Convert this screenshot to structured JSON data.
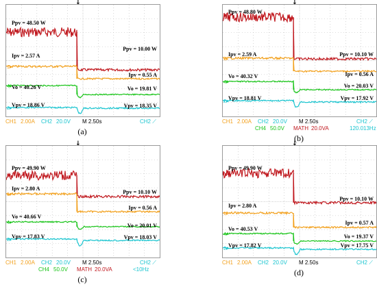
{
  "colors": {
    "ch1": "#f2a01c",
    "ch2": "#19c4cf",
    "ch4": "#19c419",
    "math": "#c0181e",
    "grid": "#b9b9b9",
    "text": "#000000"
  },
  "trigger_icon": "down-arrow-icon",
  "chart_data": [
    {
      "type": "line",
      "caption": "(a)",
      "time_unit": "s",
      "x_range": [
        -12.5,
        12.5
      ],
      "step_time": 0,
      "series": [
        {
          "channel": "MATH",
          "before": 48.5,
          "after": 10.0,
          "annotation_before": "Ppv = 48.50 W",
          "annotation_after": "Ppv = 10.00 W"
        },
        {
          "channel": "CH1",
          "before": 2.57,
          "after": 0.55,
          "annotation_before": "Ipv = 2.57 A",
          "annotation_after": "Ipv = 0.55 A"
        },
        {
          "channel": "CH4",
          "before": 40.26,
          "after": 19.81,
          "annotation_before": "Vo = 40.26 V",
          "annotation_after": "Vo = 19.81 V"
        },
        {
          "channel": "CH2",
          "before": 18.86,
          "after": 18.35,
          "annotation_before": "Vpv = 18.86 V",
          "annotation_after": "Vpv = 18.35 V"
        }
      ],
      "footer_lines": [
        [
          {
            "text": "CH1",
            "color": "ch1"
          },
          {
            "text": "2.00A",
            "color": "ch1"
          },
          {
            "text": "CH2",
            "color": "ch2"
          },
          {
            "text": "20.0V",
            "color": "ch2"
          },
          {
            "text": "M 2.50s",
            "color": "text"
          },
          {
            "text": "CH2 ⟋",
            "color": "ch2"
          }
        ]
      ]
    },
    {
      "type": "line",
      "caption": "(b)",
      "time_unit": "s",
      "x_range": [
        -12.5,
        12.5
      ],
      "step_time": 0,
      "series": [
        {
          "channel": "MATH",
          "before": 48.8,
          "after": 10.1,
          "annotation_before": "Ppv = 48.80 W",
          "annotation_after": "Ppv = 10.10 W"
        },
        {
          "channel": "CH1",
          "before": 2.59,
          "after": 0.56,
          "annotation_before": "Ipv = 2.59 A",
          "annotation_after": "Ipv = 0.56 A"
        },
        {
          "channel": "CH4",
          "before": 40.32,
          "after": 20.03,
          "annotation_before": "Vo = 40.32 V",
          "annotation_after": "Vo = 20.03 V"
        },
        {
          "channel": "CH2",
          "before": 18.81,
          "after": 17.92,
          "annotation_before": "Vpv = 18.81 V",
          "annotation_after": "Vpv = 17.92 V"
        }
      ],
      "footer_lines": [
        [
          {
            "text": "CH1",
            "color": "ch1"
          },
          {
            "text": "2.00A",
            "color": "ch1"
          },
          {
            "text": "CH2",
            "color": "ch2"
          },
          {
            "text": "20.0V",
            "color": "ch2"
          },
          {
            "text": "M 2.50s",
            "color": "text"
          },
          {
            "text": "CH2 ⟋",
            "color": "ch2"
          }
        ],
        [
          {
            "text": "CH4",
            "color": "ch4"
          },
          {
            "text": "50.0V",
            "color": "ch4"
          },
          {
            "text": "MATH",
            "color": "math"
          },
          {
            "text": "20.0VA",
            "color": "math"
          },
          {
            "text": "120.013Hz",
            "color": "ch2"
          }
        ]
      ]
    },
    {
      "type": "line",
      "caption": "(c)",
      "time_unit": "s",
      "x_range": [
        -12.5,
        12.5
      ],
      "step_time": 0,
      "series": [
        {
          "channel": "MATH",
          "before": 49.9,
          "after": 10.1,
          "annotation_before": "Ppv = 49.90 W",
          "annotation_after": "Ppv = 10.10 W"
        },
        {
          "channel": "CH1",
          "before": 2.8,
          "after": 0.56,
          "annotation_before": "Ipv = 2.80 A",
          "annotation_after": "Ipv = 0.56 A"
        },
        {
          "channel": "CH4",
          "before": 40.66,
          "after": 20.01,
          "annotation_before": "Vo = 40.66 V",
          "annotation_after": "Vo = 20.01 V"
        },
        {
          "channel": "CH2",
          "before": 17.83,
          "after": 18.03,
          "annotation_before": "Vpv = 17.83 V",
          "annotation_after": "Vpv = 18.03 V"
        }
      ],
      "footer_lines": [
        [
          {
            "text": "CH1",
            "color": "ch1"
          },
          {
            "text": "2.00A",
            "color": "ch1"
          },
          {
            "text": "CH2",
            "color": "ch2"
          },
          {
            "text": "20.0V",
            "color": "ch2"
          },
          {
            "text": "M 2.50s",
            "color": "text"
          },
          {
            "text": "CH2 ⟋",
            "color": "ch2"
          }
        ],
        [
          {
            "text": "CH4",
            "color": "ch4"
          },
          {
            "text": "50.0V",
            "color": "ch4"
          },
          {
            "text": "MATH",
            "color": "math"
          },
          {
            "text": "20.0VA",
            "color": "math"
          },
          {
            "text": "<10Hz",
            "color": "ch2"
          }
        ]
      ]
    },
    {
      "type": "line",
      "caption": "(d)",
      "time_unit": "s",
      "x_range": [
        -12.5,
        12.5
      ],
      "step_time": 0,
      "series": [
        {
          "channel": "MATH",
          "before": 49.9,
          "after": 10.1,
          "annotation_before": "Ppv = 49.90 W",
          "annotation_after": "Ppv = 10.10 W"
        },
        {
          "channel": "CH1",
          "before": 2.8,
          "after": 0.57,
          "annotation_before": "Ipv = 2.80 A",
          "annotation_after": "Ipv = 0.57 A"
        },
        {
          "channel": "CH4",
          "before": 40.53,
          "after": 19.37,
          "annotation_before": "Vo = 40.53 V",
          "annotation_after": "Vo = 19.37 V"
        },
        {
          "channel": "CH2",
          "before": 17.82,
          "after": 17.75,
          "annotation_before": "Vpv = 17.82 V",
          "annotation_after": "Vpv = 17.75 V"
        }
      ],
      "footer_lines": [
        [
          {
            "text": "CH1",
            "color": "ch1"
          },
          {
            "text": "2.00A",
            "color": "ch1"
          },
          {
            "text": "CH2",
            "color": "ch2"
          },
          {
            "text": "20.0V",
            "color": "ch2"
          },
          {
            "text": "M 2.50s",
            "color": "text"
          },
          {
            "text": "CH2 ⟋",
            "color": "ch2"
          }
        ]
      ]
    }
  ]
}
